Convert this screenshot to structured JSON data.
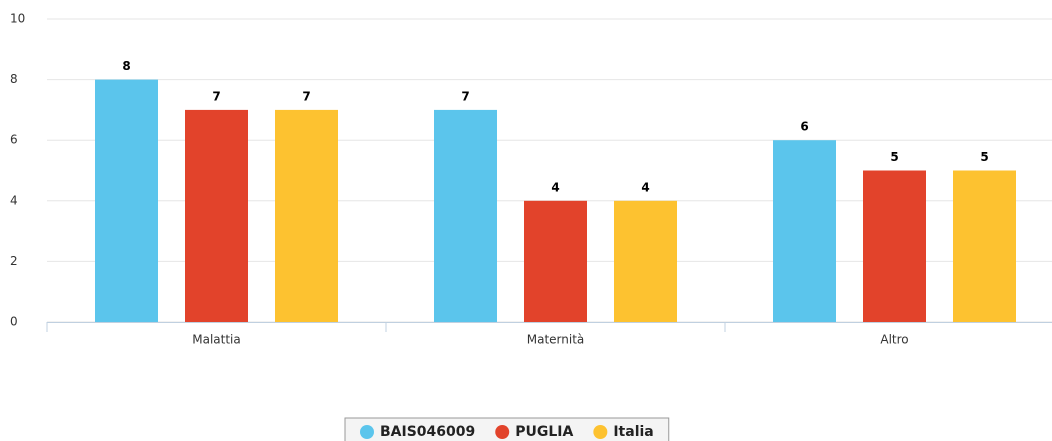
{
  "chart_data": {
    "type": "bar",
    "categories": [
      "Malattia",
      "Maternità",
      "Altro"
    ],
    "series": [
      {
        "name": "BAIS046009",
        "color": "#5bc5ec",
        "values": [
          8,
          7,
          6
        ]
      },
      {
        "name": "PUGLIA",
        "color": "#e2432b",
        "values": [
          7,
          4,
          5
        ]
      },
      {
        "name": "Italia",
        "color": "#fdc230",
        "values": [
          7,
          4,
          5
        ]
      }
    ],
    "ylim": [
      0,
      10
    ],
    "yticks": [
      0,
      2,
      4,
      6,
      8,
      10
    ],
    "grid": true,
    "legend": "bottom"
  }
}
